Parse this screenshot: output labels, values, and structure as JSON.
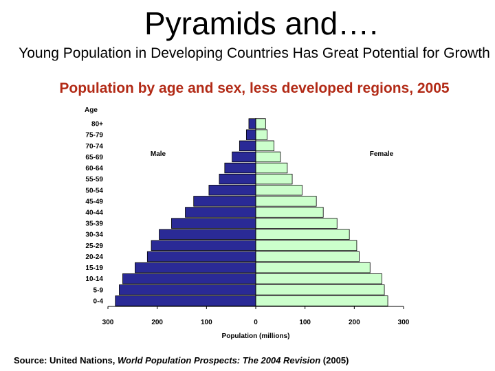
{
  "slide": {
    "title": "Pyramids and….",
    "subtitle": "Young Population in Developing Countries Has Great Potential for Growth",
    "source_prefix": "Source: United Nations, ",
    "source_italic": "World Population Prospects: The 2004 Revision",
    "source_suffix": " (2005)"
  },
  "chart_data": {
    "type": "bar",
    "orientation": "horizontal-pyramid",
    "title": "Population by age and sex, less developed regions, 2005",
    "xlabel": "Population (millions)",
    "age_axis_label": "Age",
    "categories": [
      "0-4",
      "5-9",
      "10-14",
      "15-19",
      "20-24",
      "25-29",
      "30-34",
      "35-39",
      "40-44",
      "45-49",
      "50-54",
      "55-59",
      "60-64",
      "65-69",
      "70-74",
      "75-79",
      "80+"
    ],
    "series": [
      {
        "name": "Male",
        "values": [
          285,
          277,
          270,
          245,
          220,
          212,
          196,
          171,
          143,
          126,
          95,
          74,
          63,
          48,
          33,
          19,
          14
        ]
      },
      {
        "name": "Female",
        "values": [
          268,
          261,
          256,
          232,
          210,
          205,
          190,
          165,
          137,
          123,
          94,
          74,
          64,
          50,
          37,
          23,
          20
        ]
      }
    ],
    "xlim": [
      -300,
      300
    ],
    "xticks": [
      "300",
      "200",
      "100",
      "0",
      "100",
      "200",
      "300"
    ],
    "xtick_values": [
      -300,
      -200,
      -100,
      0,
      100,
      200,
      300
    ],
    "colors": {
      "male": "#2a2a96",
      "female": "#ccffcc",
      "bar_edge": "#000000",
      "title": "#b22a16"
    }
  }
}
